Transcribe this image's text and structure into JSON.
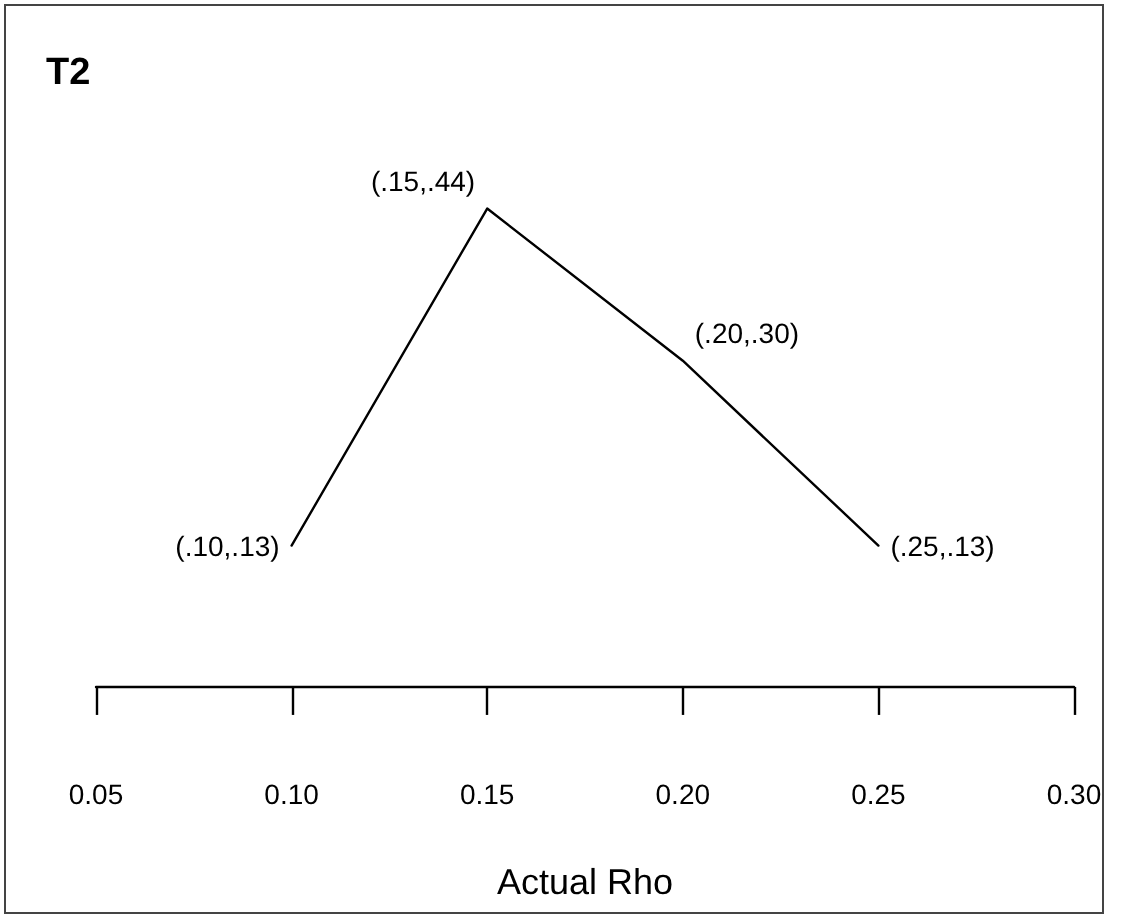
{
  "chart_data": {
    "type": "line",
    "title": "T2",
    "xlabel": "Actual Rho",
    "x": [
      0.1,
      0.15,
      0.2,
      0.25
    ],
    "series": [
      {
        "color": "#000000",
        "values": [
          0.13,
          0.44,
          0.3,
          0.13
        ],
        "value_labels": [
          "(.10,.13)",
          "(.15,.44)",
          "(.20,.30)",
          "(.25,.13)"
        ]
      }
    ],
    "xlim": [
      0.05,
      0.3
    ],
    "xticks": [
      {
        "value": 0.05,
        "label": "0.05"
      },
      {
        "value": 0.1,
        "label": "0.10"
      },
      {
        "value": 0.15,
        "label": "0.15"
      },
      {
        "value": 0.2,
        "label": "0.20"
      },
      {
        "value": 0.25,
        "label": "0.25"
      },
      {
        "value": 0.3,
        "label": "0.30"
      }
    ],
    "tick_labels": "x",
    "marker": "none",
    "line_style": "solid"
  }
}
